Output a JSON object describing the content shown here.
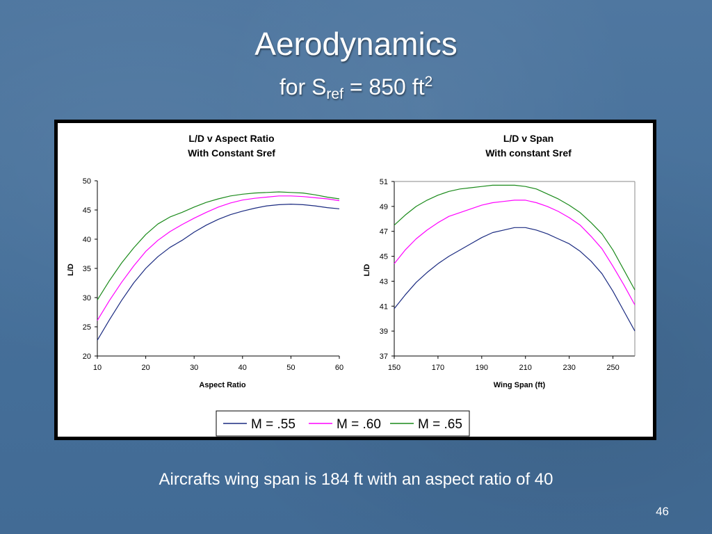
{
  "slide": {
    "title": "Aerodynamics",
    "subtitle_prefix": "for S",
    "subtitle_sub": "ref",
    "subtitle_mid": " = 850 ft",
    "subtitle_sup": "2",
    "caption": "Aircrafts wing span is 184 ft with an aspect ratio of 40",
    "page_number": "46"
  },
  "legend": {
    "entries": [
      {
        "label": "M = .55",
        "color": "#1a2a80"
      },
      {
        "label": "M = .60",
        "color": "#ff00ff"
      },
      {
        "label": "M = .65",
        "color": "#1a8a1a"
      }
    ]
  },
  "chart_data": [
    {
      "type": "line",
      "title": "L/D v Aspect Ratio",
      "subtitle": "With Constant Sref",
      "xlabel": "Aspect Ratio",
      "ylabel": "L/D",
      "xlim": [
        10,
        60
      ],
      "ylim": [
        20,
        50
      ],
      "xticks": [
        10,
        20,
        30,
        40,
        50,
        60
      ],
      "yticks": [
        20,
        25,
        30,
        35,
        40,
        45,
        50
      ],
      "grid": false,
      "legend_position": "bottom",
      "x": [
        10,
        12.5,
        15,
        17.5,
        20,
        22.5,
        25,
        27.5,
        30,
        32.5,
        35,
        37.5,
        40,
        42.5,
        45,
        47.5,
        50,
        52.5,
        55,
        57.5,
        60
      ],
      "series": [
        {
          "name": "M = .55",
          "color": "#1a2a80",
          "values": [
            22.7,
            26.2,
            29.5,
            32.5,
            35.0,
            37.0,
            38.6,
            39.8,
            41.2,
            42.4,
            43.4,
            44.2,
            44.8,
            45.3,
            45.7,
            45.9,
            46.0,
            45.9,
            45.7,
            45.4,
            45.2
          ]
        },
        {
          "name": "M = .60",
          "color": "#ff00ff",
          "values": [
            26.1,
            29.5,
            32.6,
            35.4,
            37.9,
            39.8,
            41.3,
            42.5,
            43.6,
            44.6,
            45.5,
            46.2,
            46.7,
            47.0,
            47.2,
            47.4,
            47.4,
            47.3,
            47.1,
            46.9,
            46.6
          ]
        },
        {
          "name": "M = .65",
          "color": "#1a8a1a",
          "values": [
            29.6,
            32.9,
            35.9,
            38.5,
            40.8,
            42.6,
            43.8,
            44.6,
            45.5,
            46.3,
            46.9,
            47.4,
            47.7,
            47.9,
            48.0,
            48.1,
            48.0,
            47.9,
            47.6,
            47.2,
            46.9
          ]
        }
      ]
    },
    {
      "type": "line",
      "title": "L/D v Span",
      "subtitle": "With constant Sref",
      "xlabel": "Wing Span (ft)",
      "ylabel": "L/D",
      "xlim": [
        150,
        260
      ],
      "ylim": [
        37,
        51
      ],
      "xticks": [
        150,
        170,
        190,
        210,
        230,
        250
      ],
      "yticks": [
        37,
        39,
        41,
        43,
        45,
        47,
        49,
        51
      ],
      "grid": false,
      "legend_position": "bottom",
      "x": [
        150,
        155,
        160,
        165,
        170,
        175,
        180,
        185,
        190,
        195,
        200,
        205,
        210,
        215,
        220,
        225,
        230,
        235,
        240,
        245,
        250,
        255,
        260
      ],
      "series": [
        {
          "name": "M = .55",
          "color": "#1a2a80",
          "values": [
            40.8,
            41.9,
            42.9,
            43.7,
            44.4,
            45.0,
            45.5,
            46.0,
            46.5,
            46.9,
            47.1,
            47.3,
            47.3,
            47.1,
            46.8,
            46.4,
            46.0,
            45.4,
            44.6,
            43.6,
            42.2,
            40.6,
            39.0
          ]
        },
        {
          "name": "M = .60",
          "color": "#ff00ff",
          "values": [
            44.4,
            45.5,
            46.4,
            47.1,
            47.7,
            48.2,
            48.5,
            48.8,
            49.1,
            49.3,
            49.4,
            49.5,
            49.5,
            49.3,
            49.0,
            48.6,
            48.1,
            47.5,
            46.6,
            45.6,
            44.2,
            42.7,
            41.1
          ]
        },
        {
          "name": "M = .65",
          "color": "#1a8a1a",
          "values": [
            47.5,
            48.3,
            49.0,
            49.5,
            49.9,
            50.2,
            50.4,
            50.5,
            50.6,
            50.7,
            50.7,
            50.7,
            50.6,
            50.4,
            50.0,
            49.6,
            49.1,
            48.5,
            47.7,
            46.8,
            45.5,
            43.9,
            42.3
          ]
        }
      ]
    }
  ]
}
